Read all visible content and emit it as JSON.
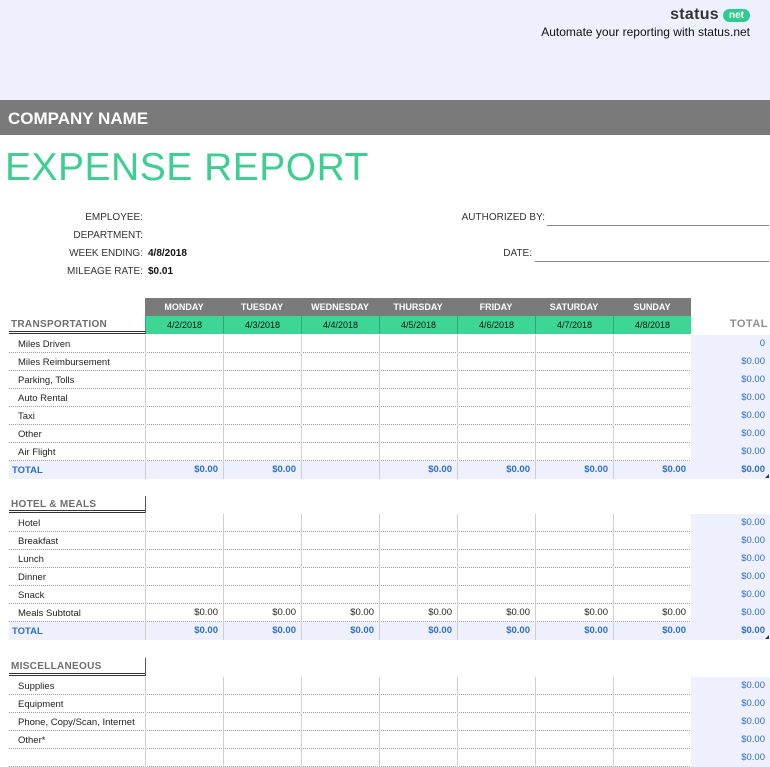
{
  "brand": {
    "name": "status",
    "badge": "net",
    "tagline": "Automate your reporting with status.net"
  },
  "company": {
    "name": "COMPANY NAME"
  },
  "report": {
    "title": "EXPENSE REPORT"
  },
  "info": {
    "employee_label": "EMPLOYEE:",
    "employee_value": "",
    "department_label": "DEPARTMENT:",
    "department_value": "",
    "week_ending_label": "WEEK ENDING:",
    "week_ending_value": "4/8/2018",
    "mileage_rate_label": "MILEAGE RATE:",
    "mileage_rate_value": "$0.01",
    "authorized_by_label": "AUTHORIZED BY:",
    "date_label": "DATE:"
  },
  "table": {
    "days": [
      "MONDAY",
      "TUESDAY",
      "WEDNESDAY",
      "THURSDAY",
      "FRIDAY",
      "SATURDAY",
      "SUNDAY"
    ],
    "dates": [
      "4/2/2018",
      "4/3/2018",
      "4/4/2018",
      "4/5/2018",
      "4/6/2018",
      "4/7/2018",
      "4/8/2018"
    ],
    "total_header": "TOTAL"
  },
  "sections": [
    {
      "title": "TRANSPORTATION",
      "rows": [
        {
          "label": "Miles Driven",
          "cells": [
            "",
            "",
            "",
            "",
            "",
            "",
            ""
          ],
          "total": "0"
        },
        {
          "label": "Miles Reimbursement",
          "cells": [
            "",
            "",
            "",
            "",
            "",
            "",
            ""
          ],
          "total": "$0.00"
        },
        {
          "label": "Parking, Tolls",
          "cells": [
            "",
            "",
            "",
            "",
            "",
            "",
            ""
          ],
          "total": "$0.00"
        },
        {
          "label": "Auto Rental",
          "cells": [
            "",
            "",
            "",
            "",
            "",
            "",
            ""
          ],
          "total": "$0.00"
        },
        {
          "label": "Taxi",
          "cells": [
            "",
            "",
            "",
            "",
            "",
            "",
            ""
          ],
          "total": "$0.00"
        },
        {
          "label": "Other",
          "cells": [
            "",
            "",
            "",
            "",
            "",
            "",
            ""
          ],
          "total": "$0.00"
        },
        {
          "label": "Air Flight",
          "cells": [
            "",
            "",
            "",
            "",
            "",
            "",
            ""
          ],
          "total": "$0.00"
        }
      ],
      "total_row": {
        "label": "TOTAL",
        "cells": [
          "$0.00",
          "$0.00",
          "",
          "$0.00",
          "$0.00",
          "$0.00",
          "$0.00"
        ],
        "total": "$0.00"
      }
    },
    {
      "title": "HOTEL & MEALS",
      "rows": [
        {
          "label": "Hotel",
          "cells": [
            "",
            "",
            "",
            "",
            "",
            "",
            ""
          ],
          "total": "$0.00"
        },
        {
          "label": "Breakfast",
          "cells": [
            "",
            "",
            "",
            "",
            "",
            "",
            ""
          ],
          "total": "$0.00"
        },
        {
          "label": "Lunch",
          "cells": [
            "",
            "",
            "",
            "",
            "",
            "",
            ""
          ],
          "total": "$0.00"
        },
        {
          "label": "Dinner",
          "cells": [
            "",
            "",
            "",
            "",
            "",
            "",
            ""
          ],
          "total": "$0.00"
        },
        {
          "label": "Snack",
          "cells": [
            "",
            "",
            "",
            "",
            "",
            "",
            ""
          ],
          "total": "$0.00"
        },
        {
          "label": "Meals Subtotal",
          "cells": [
            "$0.00",
            "$0.00",
            "$0.00",
            "$0.00",
            "$0.00",
            "$0.00",
            "$0.00"
          ],
          "total": "$0.00"
        }
      ],
      "total_row": {
        "label": "TOTAL",
        "cells": [
          "$0.00",
          "$0.00",
          "$0.00",
          "$0.00",
          "$0.00",
          "$0.00",
          "$0.00"
        ],
        "total": "$0.00"
      }
    },
    {
      "title": "MISCELLANEOUS",
      "rows": [
        {
          "label": "Supplies",
          "cells": [
            "",
            "",
            "",
            "",
            "",
            "",
            ""
          ],
          "total": "$0.00"
        },
        {
          "label": "Equipment",
          "cells": [
            "",
            "",
            "",
            "",
            "",
            "",
            ""
          ],
          "total": "$0.00"
        },
        {
          "label": "Phone, Copy/Scan, Internet",
          "cells": [
            "",
            "",
            "",
            "",
            "",
            "",
            ""
          ],
          "total": "$0.00"
        },
        {
          "label": "Other*",
          "cells": [
            "",
            "",
            "",
            "",
            "",
            "",
            ""
          ],
          "total": "$0.00"
        },
        {
          "label": "",
          "cells": [
            "",
            "",
            "",
            "",
            "",
            "",
            ""
          ],
          "total": "$0.00"
        }
      ],
      "total_row": null
    }
  ]
}
